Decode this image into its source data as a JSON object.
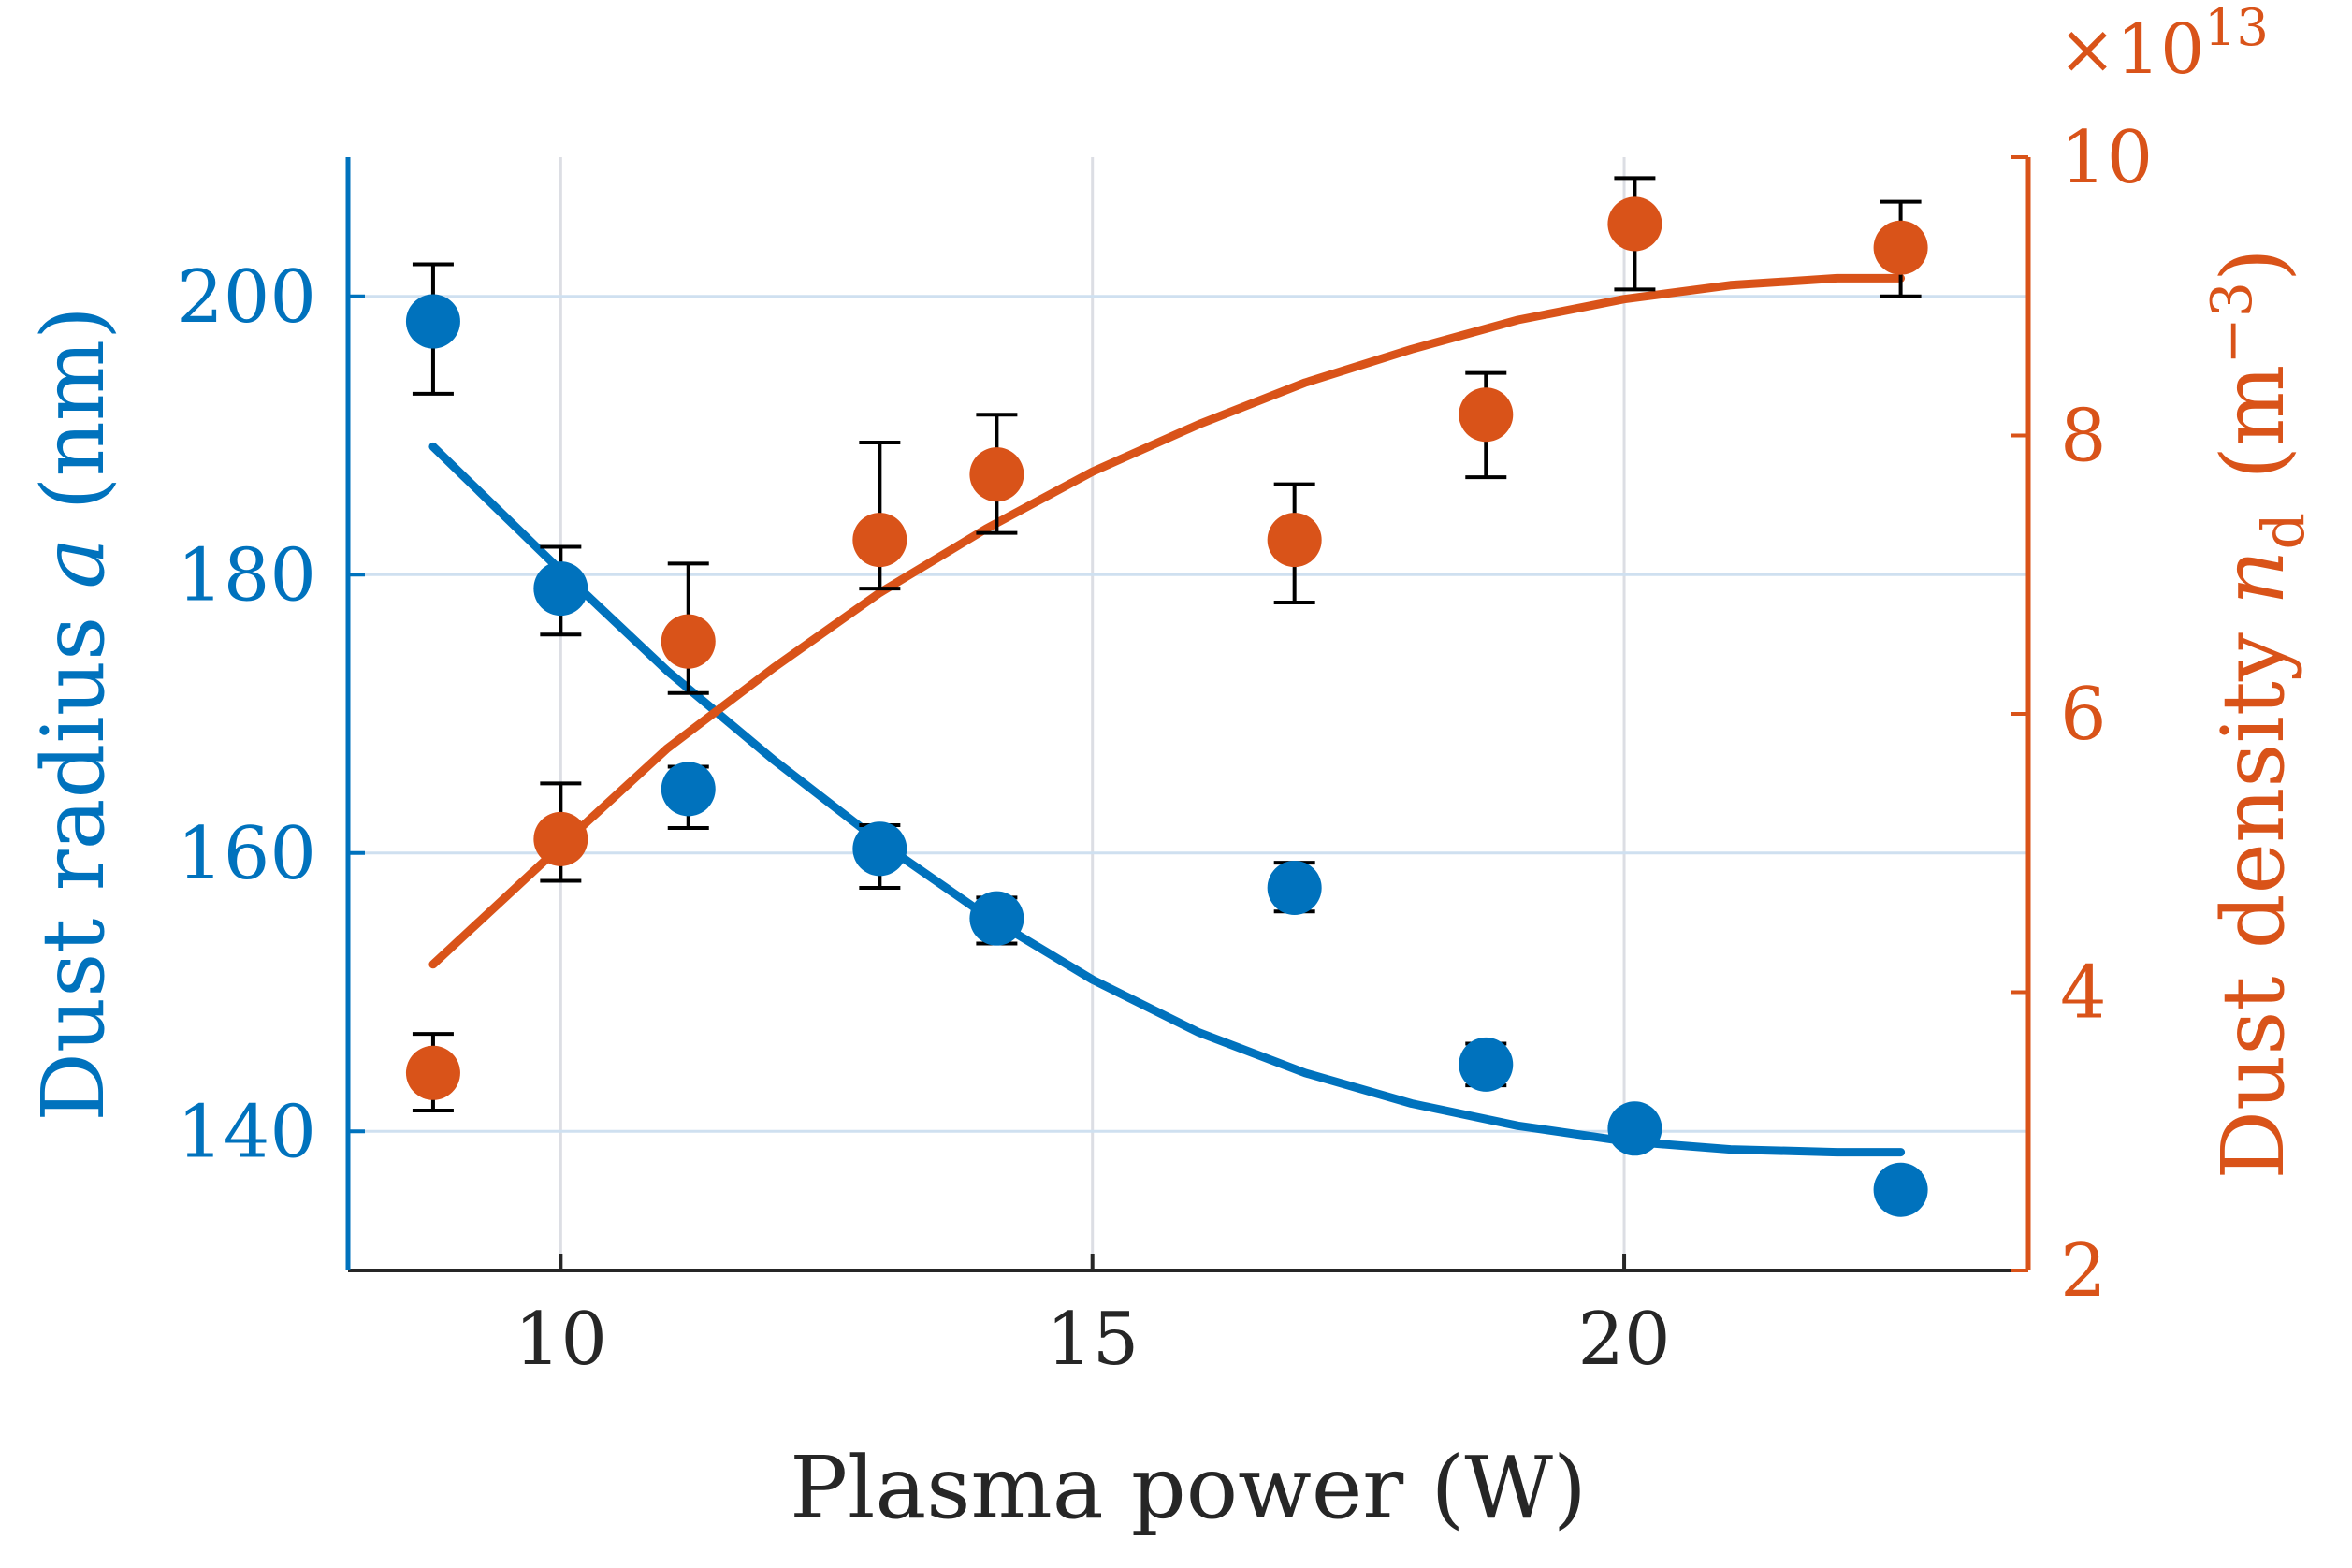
{
  "colors": {
    "left": "#0072BD",
    "right": "#D95319",
    "grid_x": "#dcdee4",
    "grid_y": "#cfe0f0",
    "text": "#262626",
    "errorbar": "#000000"
  },
  "chart_data": {
    "type": "scatter",
    "x_axis": {
      "label_parts": [
        "Plasma power (W)"
      ],
      "range": [
        8,
        23.8
      ],
      "ticks": [
        10,
        15,
        20
      ],
      "tick_labels": [
        "10",
        "15",
        "20"
      ],
      "grid": true
    },
    "y_left": {
      "label_parts": [
        "Dust radius ",
        "a",
        " (nm)"
      ],
      "range": [
        130,
        210
      ],
      "ticks": [
        140,
        160,
        180,
        200
      ],
      "tick_labels": [
        "140",
        "160",
        "180",
        "200"
      ],
      "grid": true
    },
    "y_right": {
      "label_parts": [
        "Dust density ",
        "n",
        "d",
        " (m",
        "−3",
        ")"
      ],
      "range": [
        2,
        10
      ],
      "ticks": [
        2,
        4,
        6,
        8,
        10
      ],
      "tick_labels": [
        "2",
        "4",
        "6",
        "8",
        "10"
      ],
      "multiplier_parts": [
        "×10",
        "13"
      ]
    },
    "series": [
      {
        "axis": "left",
        "points": [
          {
            "x": 8.8,
            "y": 198.2,
            "lo": 193.0,
            "hi": 202.3
          },
          {
            "x": 10.0,
            "y": 179.0,
            "lo": 175.7,
            "hi": 182.0
          },
          {
            "x": 11.2,
            "y": 164.6,
            "lo": 161.8,
            "hi": 166.2
          },
          {
            "x": 13.0,
            "y": 160.3,
            "lo": 157.5,
            "hi": 162.0
          },
          {
            "x": 14.1,
            "y": 155.3,
            "lo": 153.5,
            "hi": 156.8
          },
          {
            "x": 16.9,
            "y": 157.5,
            "lo": 155.8,
            "hi": 159.3
          },
          {
            "x": 18.7,
            "y": 144.8,
            "lo": 143.3,
            "hi": 146.3
          },
          {
            "x": 20.1,
            "y": 140.2,
            "lo": 139.2,
            "hi": 141.0
          },
          {
            "x": 22.6,
            "y": 135.8,
            "lo": 134.7,
            "hi": 137.0
          }
        ],
        "fit": {
          "x": [
            8.8,
            10,
            11,
            12,
            13,
            14,
            15,
            16,
            17,
            18,
            19,
            20,
            21,
            22,
            22.6
          ],
          "y": [
            189.2,
            180.3,
            173.1,
            166.7,
            160.8,
            155.5,
            150.9,
            147.1,
            144.2,
            142.0,
            140.4,
            139.3,
            138.7,
            138.5,
            138.5
          ]
        }
      },
      {
        "axis": "right",
        "points": [
          {
            "x": 8.8,
            "y": 3.42,
            "lo": 3.15,
            "hi": 3.7
          },
          {
            "x": 10.0,
            "y": 5.1,
            "lo": 4.8,
            "hi": 5.5
          },
          {
            "x": 11.2,
            "y": 6.52,
            "lo": 6.15,
            "hi": 7.08
          },
          {
            "x": 13.0,
            "y": 7.25,
            "lo": 6.9,
            "hi": 7.95
          },
          {
            "x": 14.1,
            "y": 7.72,
            "lo": 7.3,
            "hi": 8.15
          },
          {
            "x": 16.9,
            "y": 7.25,
            "lo": 6.8,
            "hi": 7.65
          },
          {
            "x": 18.7,
            "y": 8.15,
            "lo": 7.7,
            "hi": 8.45
          },
          {
            "x": 20.1,
            "y": 9.52,
            "lo": 9.05,
            "hi": 9.85
          },
          {
            "x": 22.6,
            "y": 9.35,
            "lo": 9.0,
            "hi": 9.68
          }
        ],
        "fit": {
          "x": [
            8.8,
            10,
            11,
            12,
            13,
            14,
            15,
            16,
            17,
            18,
            19,
            20,
            21,
            22,
            22.6
          ],
          "y": [
            4.2,
            5.05,
            5.75,
            6.33,
            6.87,
            7.33,
            7.74,
            8.08,
            8.38,
            8.62,
            8.83,
            8.98,
            9.08,
            9.13,
            9.13
          ]
        }
      }
    ]
  }
}
